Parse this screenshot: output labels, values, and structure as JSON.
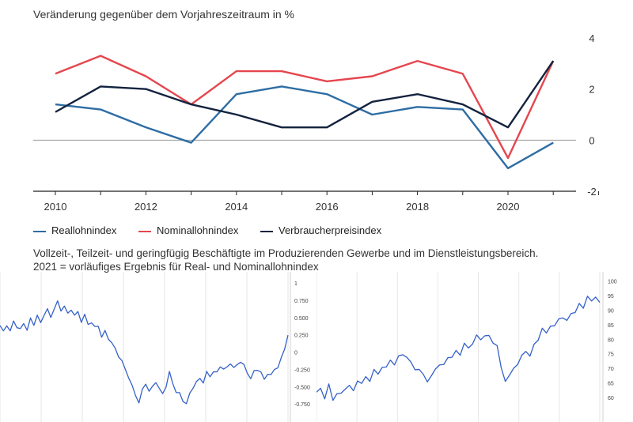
{
  "chart_data": [
    {
      "type": "line",
      "subtitle": "Veränderung gegenüber dem Vorjahreszeitraum in %",
      "x": [
        2010,
        2011,
        2012,
        2013,
        2014,
        2015,
        2016,
        2017,
        2018,
        2019,
        2020,
        2021
      ],
      "x_ticks": [
        2010,
        2012,
        2014,
        2016,
        2018,
        2020
      ],
      "y_ticks": [
        4,
        2,
        0,
        -2
      ],
      "ylim": [
        -2,
        4
      ],
      "grid": false,
      "legend_position": "bottom",
      "series": [
        {
          "name": "Reallohnindex",
          "color": "#2e6da4",
          "values": [
            1.4,
            1.2,
            0.5,
            -0.1,
            1.8,
            2.1,
            1.8,
            1.0,
            1.3,
            1.2,
            -1.1,
            -0.1
          ]
        },
        {
          "name": "Nominallohnindex",
          "color": "#e5464e",
          "values": [
            2.6,
            3.3,
            2.5,
            1.4,
            2.7,
            2.7,
            2.3,
            2.5,
            3.1,
            2.6,
            -0.7,
            3.1
          ]
        },
        {
          "name": "Verbraucherpreisindex",
          "color": "#13233f",
          "values": [
            1.1,
            2.1,
            2.0,
            1.4,
            1.0,
            0.5,
            0.5,
            1.5,
            1.8,
            1.4,
            0.5,
            3.1
          ]
        }
      ],
      "notes": [
        "Vollzeit-, Teilzeit- und geringfügig Beschäftigte im Produzierenden Gewerbe und im Dienstleistungsbereich.",
        "2021 = vorläufiges Ergebnis für Real- und Nominallohnindex"
      ]
    },
    {
      "type": "line",
      "y_ticks": [
        "1",
        "0.750",
        "0.500",
        "0.250",
        "0",
        "-0.250",
        "-0.500",
        "-0.750"
      ],
      "ylim": [
        -0.85,
        1
      ],
      "color": "#3461c8",
      "values": [
        0.35,
        0.3,
        0.4,
        0.28,
        0.45,
        0.38,
        0.32,
        0.42,
        0.35,
        0.48,
        0.4,
        0.5,
        0.42,
        0.55,
        0.6,
        0.5,
        0.65,
        0.72,
        0.6,
        0.7,
        0.55,
        0.62,
        0.5,
        0.58,
        0.45,
        0.52,
        0.4,
        0.45,
        0.35,
        0.38,
        0.25,
        0.3,
        0.2,
        0.1,
        0.05,
        -0.05,
        -0.15,
        -0.25,
        -0.35,
        -0.5,
        -0.62,
        -0.7,
        -0.55,
        -0.45,
        -0.6,
        -0.5,
        -0.42,
        -0.55,
        -0.6,
        -0.48,
        -0.3,
        -0.45,
        -0.55,
        -0.6,
        -0.7,
        -0.78,
        -0.6,
        -0.5,
        -0.45,
        -0.38,
        -0.42,
        -0.3,
        -0.35,
        -0.25,
        -0.3,
        -0.2,
        -0.28,
        -0.22,
        -0.15,
        -0.25,
        -0.18,
        -0.12,
        -0.2,
        -0.3,
        -0.35,
        -0.28,
        -0.25,
        -0.32,
        -0.4,
        -0.3,
        -0.35,
        -0.25,
        -0.2,
        -0.1,
        0.05,
        0.28
      ]
    },
    {
      "type": "line",
      "y_ticks": [
        "100",
        "95",
        "90",
        "85",
        "80",
        "75",
        "70",
        "65",
        "60"
      ],
      "ylim": [
        57,
        101
      ],
      "color": "#3461c8",
      "values": [
        61,
        63,
        60,
        64,
        59,
        62,
        61,
        63,
        65,
        62,
        66,
        64,
        67,
        66,
        69,
        68,
        71,
        70,
        73,
        72,
        74,
        75,
        73,
        72,
        70,
        69,
        68,
        66,
        67,
        70,
        72,
        71,
        74,
        73,
        76,
        75,
        78,
        77,
        79,
        81,
        80,
        82,
        81,
        79,
        77,
        70,
        66,
        67,
        70,
        72,
        74,
        76,
        75,
        78,
        80,
        83,
        82,
        85,
        84,
        87,
        88,
        86,
        89,
        90,
        92,
        91,
        94,
        93,
        95,
        92
      ]
    }
  ]
}
